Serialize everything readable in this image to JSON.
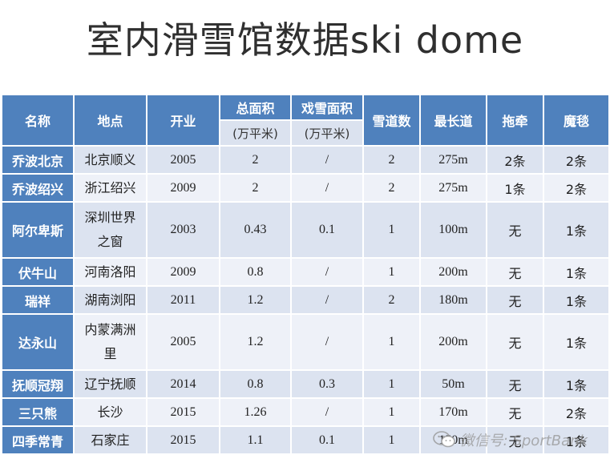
{
  "title": "室内滑雪馆数据ski dome",
  "headers": {
    "name": "名称",
    "location": "地点",
    "opened": "开业",
    "total_area": "总面积",
    "total_area_unit": "(万平米)",
    "play_area": "戏雪面积",
    "play_area_unit": "(万平米)",
    "trails": "雪道数",
    "longest": "最长道",
    "tow": "拖牵",
    "carpet": "魔毯"
  },
  "rows": [
    {
      "name": "乔波北京",
      "location": "北京顺义",
      "opened": "2005",
      "total_area": "2",
      "play_area": "/",
      "trails": "2",
      "longest": "275m",
      "tow": "2条",
      "carpet": "2条"
    },
    {
      "name": "乔波绍兴",
      "location": "浙江绍兴",
      "opened": "2009",
      "total_area": "2",
      "play_area": "/",
      "trails": "2",
      "longest": "275m",
      "tow": "1条",
      "carpet": "2条"
    },
    {
      "name": "阿尔卑斯",
      "location": "深圳世界之窗",
      "opened": "2003",
      "total_area": "0.43",
      "play_area": "0.1",
      "trails": "1",
      "longest": "100m",
      "tow": "无",
      "carpet": "1条"
    },
    {
      "name": "伏牛山",
      "location": "河南洛阳",
      "opened": "2009",
      "total_area": "0.8",
      "play_area": "/",
      "trails": "1",
      "longest": "200m",
      "tow": "无",
      "carpet": "1条"
    },
    {
      "name": "瑞祥",
      "location": "湖南浏阳",
      "opened": "2011",
      "total_area": "1.2",
      "play_area": "/",
      "trails": "2",
      "longest": "180m",
      "tow": "无",
      "carpet": "1条"
    },
    {
      "name": "达永山",
      "location": "内蒙满洲里",
      "opened": "2005",
      "total_area": "1.2",
      "play_area": "/",
      "trails": "1",
      "longest": "200m",
      "tow": "无",
      "carpet": "1条"
    },
    {
      "name": "抚顺冠翔",
      "location": "辽宁抚顺",
      "opened": "2014",
      "total_area": "0.8",
      "play_area": "0.3",
      "trails": "1",
      "longest": "50m",
      "tow": "无",
      "carpet": "1条"
    },
    {
      "name": "三只熊",
      "location": "长沙",
      "opened": "2015",
      "total_area": "1.26",
      "play_area": "/",
      "trails": "1",
      "longest": "170m",
      "tow": "无",
      "carpet": "2条"
    },
    {
      "name": "四季常青",
      "location": "石家庄",
      "opened": "2015",
      "total_area": "1.1",
      "play_area": "0.1",
      "trails": "1",
      "longest": "150m",
      "tow": "无",
      "carpet": "1条"
    }
  ],
  "watermark": {
    "text": "微信号: SportBank",
    "icon": "wechat-icon"
  },
  "colors": {
    "header": "#4f81bd",
    "band_dark": "#dce3f0",
    "band_light": "#eef1f8"
  }
}
